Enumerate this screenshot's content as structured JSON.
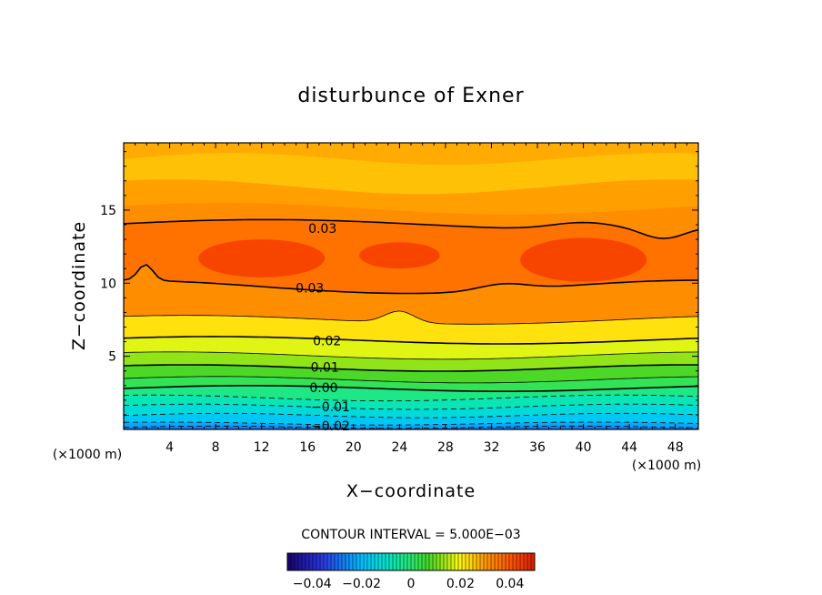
{
  "chart_data": {
    "type": "contour",
    "title": "disturbunce of Exner",
    "xlabel": "X−coordinate",
    "ylabel": "Z−coordinate",
    "x_unit": "(×1000 m)",
    "y_unit": "(×1000 m)",
    "xlim": [
      0,
      50
    ],
    "ylim": [
      0,
      19.6
    ],
    "x_ticks": [
      4,
      8,
      12,
      16,
      20,
      24,
      28,
      32,
      36,
      40,
      44,
      48
    ],
    "y_ticks": [
      5,
      10,
      15
    ],
    "contour_interval_text": "CONTOUR INTERVAL = 5.000E−03",
    "contour_labels": [
      {
        "text": "0.03",
        "x": 17.3,
        "z": 13.7
      },
      {
        "text": "0.03",
        "x": 16.2,
        "z": 9.6
      },
      {
        "text": "0.02",
        "x": 17.7,
        "z": 6.0
      },
      {
        "text": "0.01",
        "x": 17.5,
        "z": 4.2
      },
      {
        "text": "0.00",
        "x": 17.4,
        "z": 2.8
      },
      {
        "text": "−0.01",
        "x": 18.0,
        "z": 1.5
      },
      {
        "text": "−0.02",
        "x": 18.0,
        "z": 0.2
      }
    ],
    "colorbar": {
      "range": [
        -0.05,
        0.05
      ],
      "ticks": [
        -0.04,
        -0.02,
        0,
        0.02,
        0.04
      ],
      "tick_labels": [
        "−0.04",
        "−0.02",
        "0",
        "0.02",
        "0.04"
      ]
    },
    "colors": {
      "deep_negative": "#1a0070",
      "zero": "#3cd25a",
      "peak": "#ff5000"
    }
  }
}
